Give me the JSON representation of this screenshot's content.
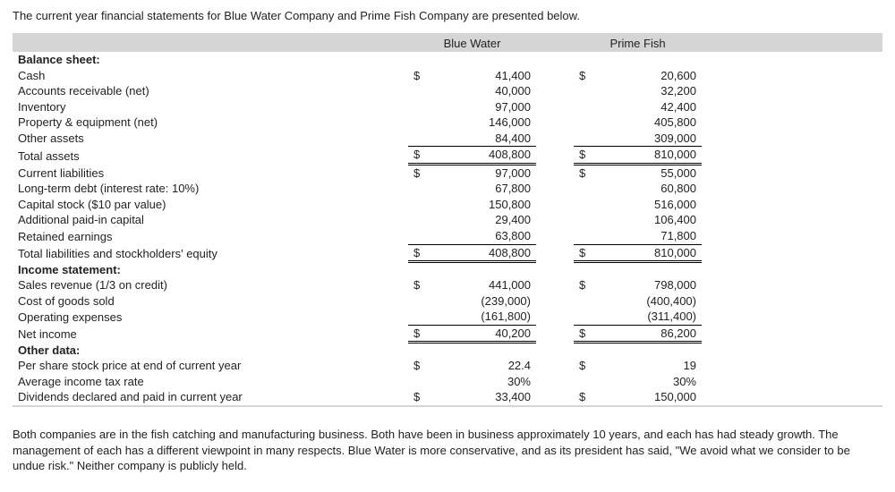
{
  "intro": "The current year financial statements for Blue Water Company and Prime Fish Company are presented below.",
  "headers": {
    "c1": "Blue Water",
    "c2": "Prime Fish"
  },
  "sections": {
    "balance": "Balance sheet:",
    "income": "Income statement:",
    "other": "Other data:"
  },
  "rows": {
    "cash": {
      "label": "Cash",
      "c1_s": "$",
      "c1": "41,400",
      "c2_s": "$",
      "c2": "20,600"
    },
    "ar": {
      "label": "Accounts receivable (net)",
      "c1_s": "",
      "c1": "40,000",
      "c2_s": "",
      "c2": "32,200"
    },
    "inv": {
      "label": "Inventory",
      "c1_s": "",
      "c1": "97,000",
      "c2_s": "",
      "c2": "42,400"
    },
    "ppe": {
      "label": "Property & equipment (net)",
      "c1_s": "",
      "c1": "146,000",
      "c2_s": "",
      "c2": "405,800"
    },
    "oa": {
      "label": "Other assets",
      "c1_s": "",
      "c1": "84,400",
      "c2_s": "",
      "c2": "309,000"
    },
    "ta": {
      "label": "Total assets",
      "c1_s": "$",
      "c1": "408,800",
      "c2_s": "$",
      "c2": "810,000"
    },
    "cl": {
      "label": "Current liabilities",
      "c1_s": "$",
      "c1": "97,000",
      "c2_s": "$",
      "c2": "55,000"
    },
    "ltd": {
      "label": "Long-term debt (interest rate: 10%)",
      "c1_s": "",
      "c1": "67,800",
      "c2_s": "",
      "c2": "60,800"
    },
    "cs": {
      "label": "Capital stock ($10 par value)",
      "c1_s": "",
      "c1": "150,800",
      "c2_s": "",
      "c2": "516,000"
    },
    "apic": {
      "label": "Additional paid-in capital",
      "c1_s": "",
      "c1": "29,400",
      "c2_s": "",
      "c2": "106,400"
    },
    "re": {
      "label": "Retained earnings",
      "c1_s": "",
      "c1": "63,800",
      "c2_s": "",
      "c2": "71,800"
    },
    "tle": {
      "label": "Total liabilities and stockholders' equity",
      "c1_s": "$",
      "c1": "408,800",
      "c2_s": "$",
      "c2": "810,000"
    },
    "sales": {
      "label": "Sales revenue (1/3 on credit)",
      "c1_s": "$",
      "c1": "441,000",
      "c2_s": "$",
      "c2": "798,000"
    },
    "cogs": {
      "label": "Cost of goods sold",
      "c1_s": "",
      "c1": "(239,000)",
      "c2_s": "",
      "c2": "(400,400)"
    },
    "opex": {
      "label": "Operating expenses",
      "c1_s": "",
      "c1": "(161,800)",
      "c2_s": "",
      "c2": "(311,400)"
    },
    "ni": {
      "label": "Net income",
      "c1_s": "$",
      "c1": "40,200",
      "c2_s": "$",
      "c2": "86,200"
    },
    "price": {
      "label": "Per share stock price at end of current year",
      "c1_s": "$",
      "c1": "22.4",
      "c2_s": "$",
      "c2": "19"
    },
    "tax": {
      "label": "Average income tax rate",
      "c1_s": "",
      "c1": "30%",
      "c2_s": "",
      "c2": "30%"
    },
    "div": {
      "label": "Dividends declared and paid in current year",
      "c1_s": "$",
      "c1": "33,400",
      "c2_s": "$",
      "c2": "150,000"
    }
  },
  "outro": "Both companies are in the fish catching and manufacturing business. Both have been in business approximately 10 years, and each has had steady growth. The management of each has a different viewpoint in many respects. Blue Water is more conservative, and as its president has said, \"We avoid what we consider to be undue risk.\" Neither company is publicly held."
}
